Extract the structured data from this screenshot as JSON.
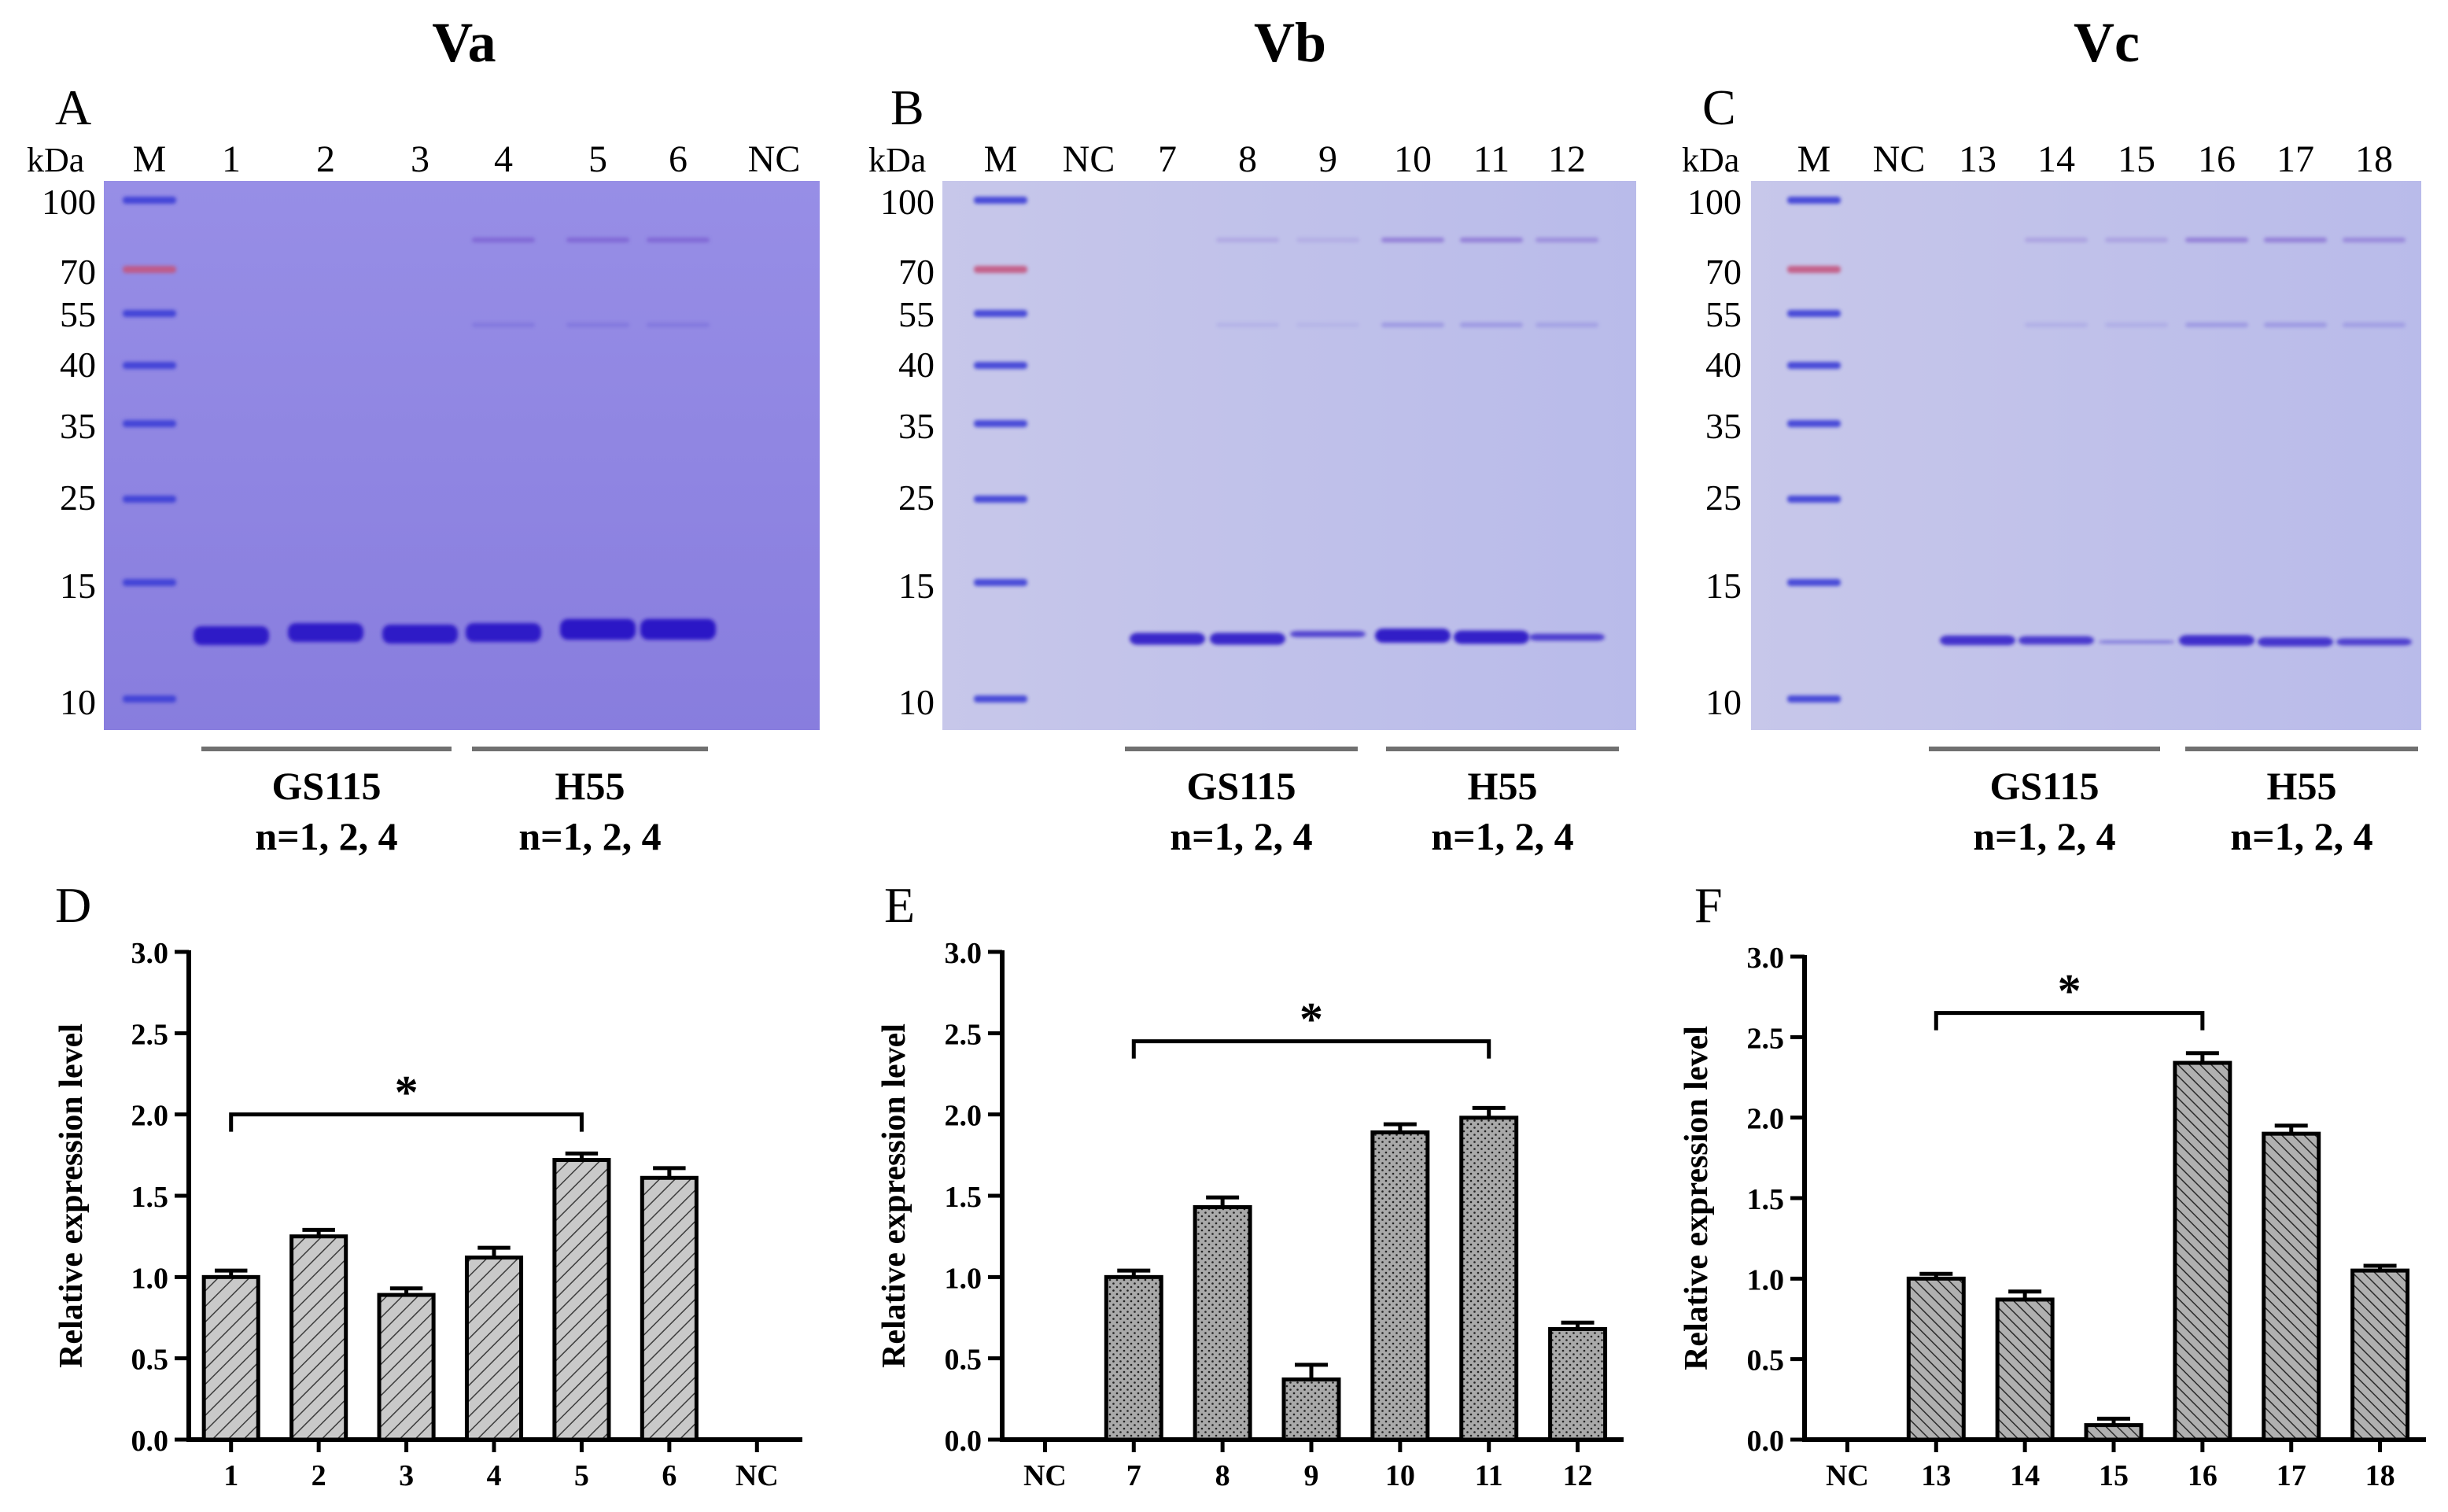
{
  "figure": {
    "panels": [
      {
        "letter": "A",
        "title": "Va",
        "kda_label": "kDa",
        "lane_labels": [
          "M",
          "1",
          "2",
          "3",
          "4",
          "5",
          "6",
          "NC"
        ],
        "marker_kda": [
          "100",
          "70",
          "55",
          "40",
          "35",
          "25",
          "15",
          "10"
        ],
        "groups": [
          {
            "name": "GS115",
            "sub": "n=1, 2, 4"
          },
          {
            "name": "H55",
            "sub": "n=1, 2, 4"
          }
        ]
      },
      {
        "letter": "B",
        "title": "Vb",
        "kda_label": "kDa",
        "lane_labels": [
          "M",
          "NC",
          "7",
          "8",
          "9",
          "10",
          "11",
          "12"
        ],
        "marker_kda": [
          "100",
          "70",
          "55",
          "40",
          "35",
          "25",
          "15",
          "10"
        ],
        "groups": [
          {
            "name": "GS115",
            "sub": "n=1, 2, 4"
          },
          {
            "name": "H55",
            "sub": "n=1, 2, 4"
          }
        ]
      },
      {
        "letter": "C",
        "title": "Vc",
        "kda_label": "kDa",
        "lane_labels": [
          "M",
          "NC",
          "13",
          "14",
          "15",
          "16",
          "17",
          "18"
        ],
        "marker_kda": [
          "100",
          "70",
          "55",
          "40",
          "35",
          "25",
          "15",
          "10"
        ],
        "groups": [
          {
            "name": "GS115",
            "sub": "n=1, 2, 4"
          },
          {
            "name": "H55",
            "sub": "n=1, 2, 4"
          }
        ]
      }
    ]
  },
  "colors": {
    "gel_background": "#8f85e4",
    "band": "#2a17c6",
    "marker_band": "#3b3ed6",
    "marker_70": "#c4557e",
    "bar_fill": "#b5b5b5",
    "axis": "#000000"
  },
  "chart_data": [
    {
      "letter": "D",
      "type": "bar",
      "pattern": "diagonal-hatch",
      "categories": [
        "1",
        "2",
        "3",
        "4",
        "5",
        "6",
        "NC"
      ],
      "values": [
        1.0,
        1.25,
        0.89,
        1.12,
        1.72,
        1.61,
        0
      ],
      "errors": [
        0.04,
        0.04,
        0.04,
        0.06,
        0.04,
        0.06,
        0
      ],
      "ylabel": "Relative expression level",
      "ylim": [
        0,
        3.0
      ],
      "yticks": [
        "0.0",
        "0.5",
        "1.0",
        "1.5",
        "2.0",
        "2.5",
        "3.0"
      ],
      "significance": {
        "from": "1",
        "to": "5",
        "label": "*",
        "y": 2.0
      }
    },
    {
      "letter": "E",
      "type": "bar",
      "pattern": "dotted",
      "categories": [
        "NC",
        "7",
        "8",
        "9",
        "10",
        "11",
        "12"
      ],
      "values": [
        0,
        1.0,
        1.43,
        0.37,
        1.89,
        1.98,
        0.68
      ],
      "errors": [
        0,
        0.04,
        0.06,
        0.09,
        0.05,
        0.06,
        0.04
      ],
      "ylabel": "Relative expression level",
      "ylim": [
        0,
        3.0
      ],
      "yticks": [
        "0.0",
        "0.5",
        "1.0",
        "1.5",
        "2.0",
        "2.5",
        "3.0"
      ],
      "significance": {
        "from": "7",
        "to": "11",
        "label": "*",
        "y": 2.45
      }
    },
    {
      "letter": "F",
      "type": "bar",
      "pattern": "dense-hatch",
      "categories": [
        "NC",
        "13",
        "14",
        "15",
        "16",
        "17",
        "18"
      ],
      "values": [
        0,
        1.0,
        0.87,
        0.09,
        2.34,
        1.9,
        1.05
      ],
      "errors": [
        0,
        0.03,
        0.05,
        0.04,
        0.06,
        0.05,
        0.03
      ],
      "ylabel": "Relative expression level",
      "ylim": [
        0,
        3.0
      ],
      "yticks": [
        "0.0",
        "0.5",
        "1.0",
        "1.5",
        "2.0",
        "2.5",
        "3.0"
      ],
      "significance": {
        "from": "13",
        "to": "16",
        "label": "*",
        "y": 2.65
      }
    }
  ]
}
